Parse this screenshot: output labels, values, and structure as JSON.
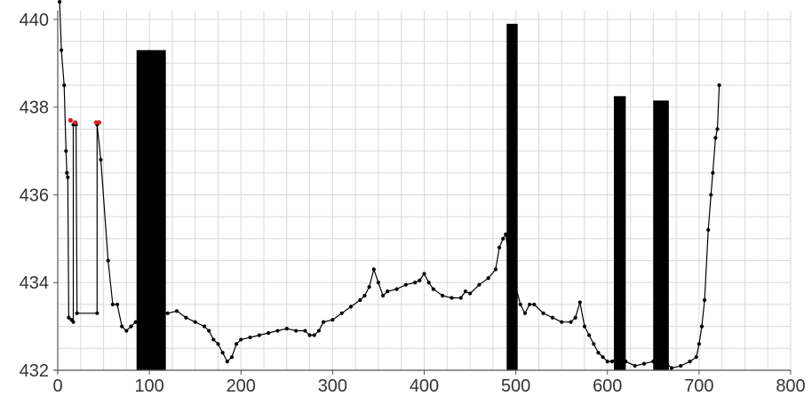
{
  "chart_data": {
    "type": "line",
    "title": "",
    "xlabel": "",
    "ylabel": "",
    "xlim": [
      0,
      800
    ],
    "ylim": [
      432,
      440.2
    ],
    "x_ticks": [
      0,
      100,
      200,
      300,
      400,
      500,
      600,
      700,
      800
    ],
    "x_tick_labels": [
      "0",
      "100",
      "200",
      "300",
      "400",
      "500",
      "600",
      "700",
      "800"
    ],
    "y_ticks": [
      432,
      434,
      436,
      438,
      440
    ],
    "y_tick_labels": [
      "432",
      "434",
      "436",
      "438",
      "440"
    ],
    "grid": true,
    "colors": {
      "line": "#000000",
      "highlight": "#d62020",
      "grid": "#d9d9d9",
      "axis": "#555555"
    },
    "series": [
      {
        "values": [
          [
            2,
            440.4
          ],
          [
            4,
            439.3
          ],
          [
            7,
            438.5
          ],
          [
            9,
            437.0
          ],
          [
            10,
            436.5
          ],
          [
            11,
            436.4
          ],
          [
            12,
            433.2
          ],
          [
            15,
            433.15
          ],
          [
            17,
            433.1
          ],
          [
            17,
            437.6
          ],
          [
            20,
            437.6
          ],
          [
            21,
            433.3
          ],
          [
            43,
            433.3
          ],
          [
            43,
            437.6
          ],
          [
            47,
            436.8
          ],
          [
            55,
            434.5
          ],
          [
            60,
            433.5
          ],
          [
            65,
            433.5
          ],
          [
            70,
            433.0
          ],
          [
            75,
            432.9
          ],
          [
            80,
            433.0
          ],
          [
            85,
            433.1
          ],
          [
            90,
            433.2
          ],
          [
            100,
            433.25
          ],
          [
            110,
            433.3
          ],
          [
            120,
            433.3
          ],
          [
            130,
            433.35
          ],
          [
            140,
            433.2
          ],
          [
            150,
            433.1
          ],
          [
            160,
            433.0
          ],
          [
            165,
            432.9
          ],
          [
            170,
            432.7
          ],
          [
            175,
            432.6
          ],
          [
            180,
            432.4
          ],
          [
            185,
            432.2
          ],
          [
            190,
            432.3
          ],
          [
            195,
            432.6
          ],
          [
            200,
            432.7
          ],
          [
            210,
            432.75
          ],
          [
            220,
            432.8
          ],
          [
            230,
            432.85
          ],
          [
            240,
            432.9
          ],
          [
            250,
            432.95
          ],
          [
            260,
            432.9
          ],
          [
            270,
            432.9
          ],
          [
            275,
            432.8
          ],
          [
            280,
            432.8
          ],
          [
            285,
            432.9
          ],
          [
            290,
            433.1
          ],
          [
            300,
            433.15
          ],
          [
            310,
            433.3
          ],
          [
            320,
            433.45
          ],
          [
            330,
            433.6
          ],
          [
            335,
            433.7
          ],
          [
            340,
            433.9
          ],
          [
            345,
            434.3
          ],
          [
            350,
            434.0
          ],
          [
            355,
            433.7
          ],
          [
            360,
            433.8
          ],
          [
            370,
            433.85
          ],
          [
            380,
            433.95
          ],
          [
            390,
            434.0
          ],
          [
            395,
            434.05
          ],
          [
            400,
            434.2
          ],
          [
            405,
            434.0
          ],
          [
            410,
            433.85
          ],
          [
            420,
            433.7
          ],
          [
            430,
            433.65
          ],
          [
            440,
            433.65
          ],
          [
            445,
            433.8
          ],
          [
            450,
            433.75
          ],
          [
            460,
            433.95
          ],
          [
            470,
            434.1
          ],
          [
            478,
            434.3
          ],
          [
            482,
            434.8
          ],
          [
            486,
            435.0
          ],
          [
            489,
            435.1
          ],
          [
            492,
            434.6
          ],
          [
            495,
            434.2
          ],
          [
            500,
            433.9
          ],
          [
            505,
            433.5
          ],
          [
            510,
            433.3
          ],
          [
            515,
            433.5
          ],
          [
            520,
            433.5
          ],
          [
            530,
            433.3
          ],
          [
            540,
            433.2
          ],
          [
            550,
            433.1
          ],
          [
            560,
            433.1
          ],
          [
            565,
            433.2
          ],
          [
            570,
            433.55
          ],
          [
            575,
            433.0
          ],
          [
            580,
            432.8
          ],
          [
            585,
            432.6
          ],
          [
            590,
            432.4
          ],
          [
            595,
            432.3
          ],
          [
            600,
            432.2
          ],
          [
            605,
            432.2
          ],
          [
            610,
            432.3
          ],
          [
            620,
            432.2
          ],
          [
            630,
            432.1
          ],
          [
            640,
            432.15
          ],
          [
            650,
            432.2
          ],
          [
            660,
            432.25
          ],
          [
            670,
            432.05
          ],
          [
            680,
            432.1
          ],
          [
            690,
            432.2
          ],
          [
            697,
            432.3
          ],
          [
            700,
            432.6
          ],
          [
            703,
            433.0
          ],
          [
            706,
            433.6
          ],
          [
            710,
            435.2
          ],
          [
            713,
            436.0
          ],
          [
            715,
            436.5
          ],
          [
            718,
            437.3
          ],
          [
            720,
            437.5
          ],
          [
            722,
            438.5
          ]
        ],
        "highlighted": [
          [
            14,
            437.7
          ],
          [
            19,
            437.65
          ],
          [
            42,
            437.65
          ],
          [
            45,
            437.65
          ]
        ]
      }
    ],
    "bars": [
      {
        "x_start": 86,
        "x_end": 118,
        "top": 439.3
      },
      {
        "x_start": 490,
        "x_end": 502,
        "top": 439.9
      },
      {
        "x_start": 607,
        "x_end": 620,
        "top": 438.25
      },
      {
        "x_start": 650,
        "x_end": 667,
        "top": 438.15
      }
    ]
  }
}
